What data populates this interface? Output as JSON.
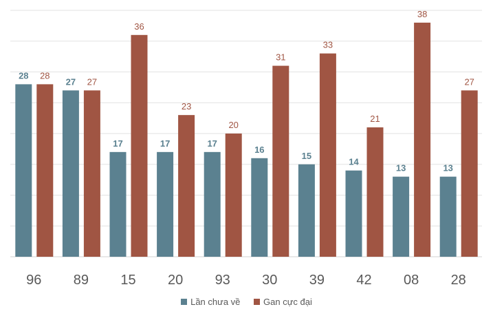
{
  "chart_data": {
    "type": "bar",
    "categories": [
      "96",
      "89",
      "15",
      "20",
      "93",
      "30",
      "39",
      "42",
      "08",
      "28"
    ],
    "series": [
      {
        "name": "Lần chưa về",
        "color": "#5b8190",
        "values": [
          28,
          27,
          17,
          17,
          17,
          16,
          15,
          14,
          13,
          13
        ]
      },
      {
        "name": "Gan cực đại",
        "color": "#a05543",
        "values": [
          28,
          27,
          36,
          23,
          20,
          31,
          33,
          21,
          38,
          27
        ]
      }
    ],
    "ylim": [
      0,
      40
    ],
    "ygrid_step": 5,
    "grid": true,
    "y_axis_labels_shown": false,
    "data_labels": true,
    "legend": "bottom"
  }
}
